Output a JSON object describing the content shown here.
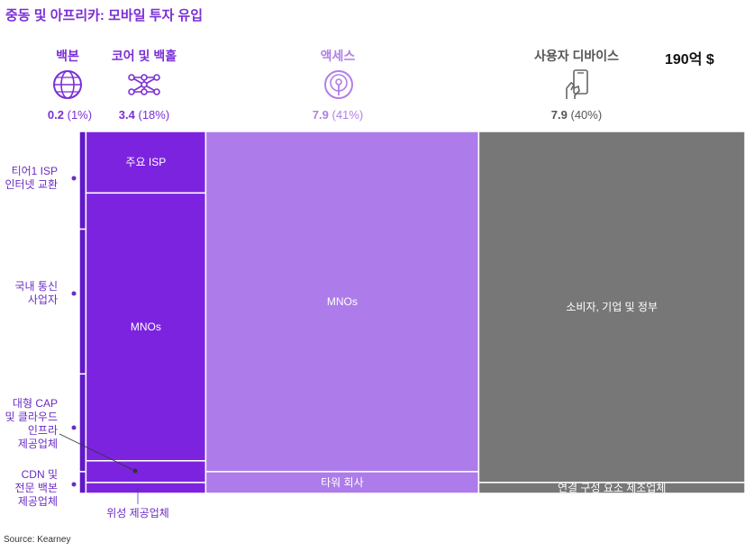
{
  "title": "중동 및 아프리카: 모바일 투자 유입",
  "total": "190억 $",
  "source": "Source: Kearney",
  "colors": {
    "accent": "#7b2fd6",
    "backbone": "#5f19c7",
    "core": "#7c23e0",
    "access": "#ad7cea",
    "devices": "#777777"
  },
  "segments": [
    {
      "name": "백본",
      "value": "0.2",
      "pct": "(1%)",
      "icon": "globe-icon",
      "color": "#7b2fd6"
    },
    {
      "name": "코어 및 백홀",
      "value": "3.4",
      "pct": "(18%)",
      "icon": "network-nodes-icon",
      "color": "#7b2fd6"
    },
    {
      "name": "액세스",
      "value": "7.9",
      "pct": "(41%)",
      "icon": "antenna-icon",
      "color": "#b07fe8"
    },
    {
      "name": "사용자 디바이스",
      "value": "7.9",
      "pct": "(40%)",
      "icon": "hand-phone-icon",
      "color": "#555555"
    }
  ],
  "side_labels": [
    "티어1 ISP\n인터넷 교환",
    "국내 통신\n사업자",
    "대형 CAP\n및 클라우드\n인프라\n제공업체",
    "CDN 및\n전문 백본\n제공업체",
    "위성 제공업체"
  ],
  "chart_data": {
    "type": "mekko",
    "title": "중동 및 아프리카: 모바일 투자 유입",
    "total_label": "190억 $",
    "columns": [
      {
        "name": "백본",
        "value": 0.2,
        "share": 1,
        "blocks": [
          {
            "label": "티어1 ISP 인터넷 교환",
            "share": 27
          },
          {
            "label": "국내 통신 사업자",
            "share": 40
          },
          {
            "label": "대형 CAP 및 클라우드 인프라 제공업체",
            "share": 27
          },
          {
            "label": "CDN 및 전문 백본 제공업체",
            "share": 6
          }
        ]
      },
      {
        "name": "코어 및 백홀",
        "value": 3.4,
        "share": 18,
        "blocks": [
          {
            "label": "주요 ISP",
            "share": 17
          },
          {
            "label": "MNOs",
            "share": 74
          },
          {
            "label": "",
            "share": 6
          },
          {
            "label": "위성 제공업체",
            "share": 3
          }
        ]
      },
      {
        "name": "액세스",
        "value": 7.9,
        "share": 41,
        "blocks": [
          {
            "label": "MNOs",
            "share": 94
          },
          {
            "label": "타워 회사",
            "share": 6
          }
        ]
      },
      {
        "name": "사용자 디바이스",
        "value": 7.9,
        "share": 40,
        "blocks": [
          {
            "label": "소비자, 기업 및 정부",
            "share": 97
          },
          {
            "label": "연결 구성 요소 제조업체",
            "share": 3
          }
        ]
      }
    ]
  }
}
